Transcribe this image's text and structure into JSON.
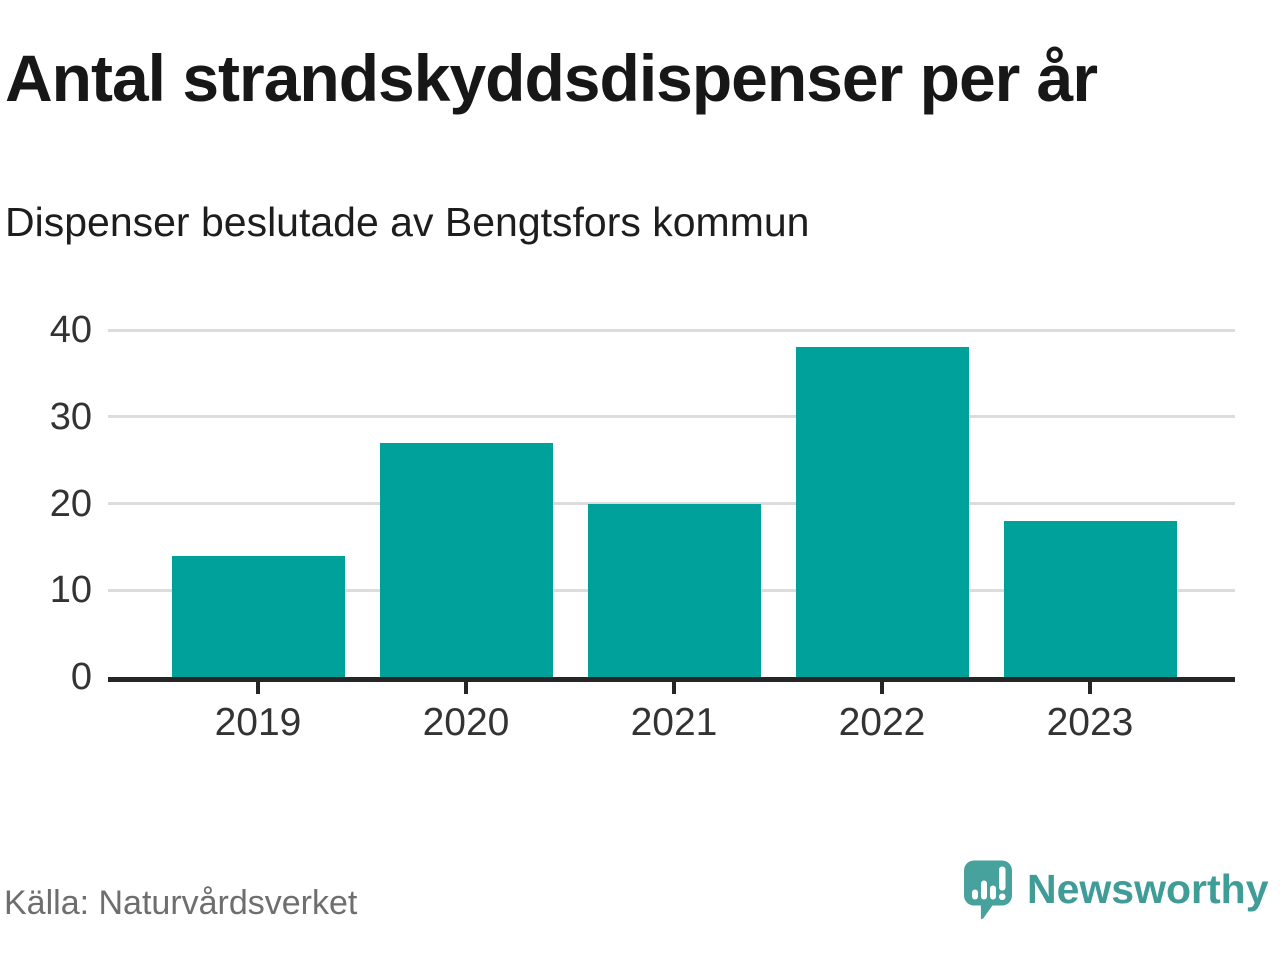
{
  "header": {
    "title": "Antal strandskyddsdispenser per år",
    "subtitle": "Dispenser beslutade av Bengtsfors kommun"
  },
  "chart_data": {
    "type": "bar",
    "title": "Antal strandskyddsdispenser per år",
    "subtitle": "Dispenser beslutade av Bengtsfors kommun",
    "categories": [
      "2019",
      "2020",
      "2021",
      "2022",
      "2023"
    ],
    "values": [
      14,
      27,
      20,
      38,
      18
    ],
    "xlabel": "",
    "ylabel": "",
    "ylim": [
      0,
      40
    ],
    "yticks": [
      0,
      10,
      20,
      30,
      40
    ],
    "grid": true,
    "legend": "none",
    "bar_color": "#00a19a",
    "gridline_color": "#dcdcdc",
    "axis_color": "#262626",
    "tick_label_color": "#333333"
  },
  "footer": {
    "source": "Källa: Naturvårdsverket",
    "brand": "Newsworthy",
    "brand_color": "#3f9c96",
    "logo_icon": "speech-bubble-bar-chart-icon",
    "logo_icon_color": "#47a29d"
  }
}
